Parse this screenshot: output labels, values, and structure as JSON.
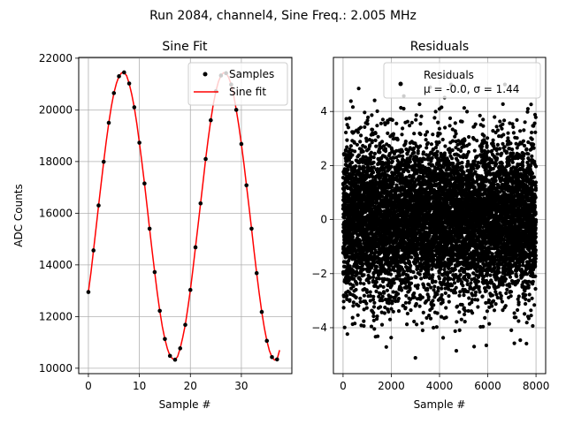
{
  "figure": {
    "suptitle": "Run 2084, channel4, Sine Freq.: 2.005 MHz"
  },
  "chart_data": [
    {
      "type": "scatter",
      "title": "Sine Fit",
      "xlabel": "Sample #",
      "ylabel": "ADC Counts",
      "xlim": [
        -1.9,
        39.9
      ],
      "ylim": [
        9790,
        22030
      ],
      "xticks": [
        0,
        10,
        20,
        30
      ],
      "yticks": [
        10000,
        12000,
        14000,
        16000,
        18000,
        20000,
        22000
      ],
      "xtick_labels": [
        "0",
        "10",
        "20",
        "30"
      ],
      "ytick_labels": [
        "10000",
        "12000",
        "14000",
        "16000",
        "18000",
        "20000",
        "22000"
      ],
      "grid": true,
      "legend_position": "top-right",
      "series": [
        {
          "name": "Samples",
          "style": "markers",
          "color": "#000000",
          "x": [
            0,
            1,
            2,
            3,
            4,
            5,
            6,
            7,
            8,
            9,
            10,
            11,
            12,
            13,
            14,
            15,
            16,
            17,
            18,
            19,
            20,
            21,
            22,
            23,
            24,
            25,
            26,
            27,
            28,
            29,
            30,
            31,
            32,
            33,
            34,
            35,
            36,
            37
          ],
          "y": [
            12950,
            14560,
            16300,
            17990,
            19500,
            20650,
            21300,
            21450,
            21020,
            20100,
            18730,
            17150,
            15400,
            13720,
            12220,
            11130,
            10480,
            10330,
            10770,
            11680,
            13030,
            14680,
            16380,
            18100,
            19600,
            20720,
            21330,
            21420,
            20980,
            20000,
            18680,
            17080,
            15400,
            13680,
            12180,
            11060,
            10430,
            10340
          ]
        },
        {
          "name": "Sine fit",
          "style": "line",
          "color": "#ff0000",
          "x": [
            0,
            0.5,
            1,
            1.5,
            2,
            2.5,
            3,
            3.5,
            4,
            4.5,
            5,
            5.5,
            6,
            6.5,
            7,
            7.5,
            8,
            8.5,
            9,
            9.5,
            10,
            10.5,
            11,
            11.5,
            12,
            12.5,
            13,
            13.5,
            14,
            14.5,
            15,
            15.5,
            16,
            16.5,
            17,
            17.5,
            18,
            18.5,
            19,
            19.5,
            20,
            20.5,
            21,
            21.5,
            22,
            22.5,
            23,
            23.5,
            24,
            24.5,
            25,
            25.5,
            26,
            26.5,
            27,
            27.5,
            28,
            28.5,
            29,
            29.5,
            30,
            30.5,
            31,
            31.5,
            32,
            32.5,
            33,
            33.5,
            34,
            34.5,
            35,
            35.5,
            36,
            36.5,
            37,
            37.5
          ],
          "y": [
            12950,
            13700,
            14560,
            15420,
            16300,
            17150,
            17990,
            18780,
            19500,
            20130,
            20650,
            21030,
            21300,
            21430,
            21450,
            21320,
            21020,
            20600,
            20100,
            19460,
            18730,
            17960,
            17150,
            16280,
            15400,
            14540,
            13720,
            12930,
            12220,
            11610,
            11130,
            10750,
            10480,
            10370,
            10330,
            10450,
            10770,
            11190,
            11680,
            12330,
            13030,
            13830,
            14680,
            15520,
            16380,
            17230,
            18100,
            18880,
            19600,
            20220,
            20720,
            21090,
            21330,
            21440,
            21420,
            21260,
            20980,
            20560,
            20000,
            19390,
            18680,
            17920,
            17080,
            16250,
            15400,
            14520,
            13680,
            12900,
            12180,
            11570,
            11060,
            10680,
            10430,
            10320,
            10340,
            10700
          ]
        }
      ]
    },
    {
      "type": "scatter",
      "title": "Residuals",
      "xlabel": "Sample #",
      "ylabel": "",
      "xlim": [
        -400,
        8400
      ],
      "ylim": [
        -5.7,
        6.0
      ],
      "xticks": [
        0,
        2000,
        4000,
        6000,
        8000
      ],
      "yticks": [
        -4,
        -2,
        0,
        2,
        4
      ],
      "xtick_labels": [
        "0",
        "2000",
        "4000",
        "6000",
        "8000"
      ],
      "ytick_labels": [
        "−4",
        "−2",
        "0",
        "2",
        "4"
      ],
      "grid": true,
      "legend_position": "top-right",
      "n_samples": 8000,
      "mean": -0.0,
      "sigma": 1.44,
      "series": [
        {
          "name": "Residuals",
          "style": "markers",
          "color": "#000000",
          "distribution": "normal",
          "x_range": [
            0,
            8000
          ]
        }
      ],
      "legend": {
        "line1": "Residuals",
        "line2": "μ = -0.0, σ = 1.44"
      }
    }
  ]
}
